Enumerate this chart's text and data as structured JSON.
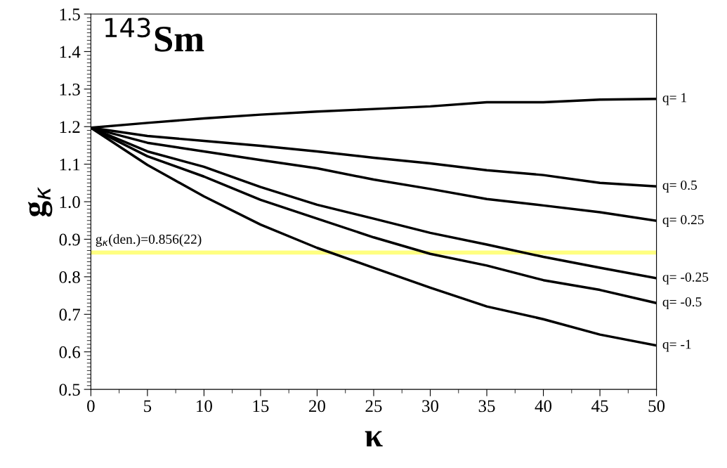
{
  "chart_data": {
    "type": "line",
    "xlabel": "κ",
    "ylabel": "g$_{κ}$",
    "x": [
      0,
      5,
      10,
      15,
      20,
      25,
      30,
      35,
      40,
      45,
      50
    ],
    "series": [
      {
        "name": "q= 1",
        "color": "#000000",
        "values": [
          1.197,
          1.21,
          1.222,
          1.232,
          1.24,
          1.247,
          1.254,
          1.265,
          1.265,
          1.272,
          1.274
        ]
      },
      {
        "name": "q= 0.5",
        "color": "#000000",
        "values": [
          1.197,
          1.175,
          1.162,
          1.149,
          1.134,
          1.117,
          1.102,
          1.084,
          1.071,
          1.05,
          1.041
        ]
      },
      {
        "name": "q= 0.25",
        "color": "#000000",
        "values": [
          1.197,
          1.157,
          1.134,
          1.111,
          1.089,
          1.059,
          1.034,
          1.007,
          0.99,
          0.972,
          0.949
        ]
      },
      {
        "name": "q= -0.25",
        "color": "#000000",
        "values": [
          1.197,
          1.134,
          1.093,
          1.039,
          0.992,
          0.955,
          0.917,
          0.886,
          0.853,
          0.824,
          0.796
        ]
      },
      {
        "name": "q= -0.5",
        "color": "#000000",
        "values": [
          1.197,
          1.121,
          1.067,
          1.005,
          0.955,
          0.905,
          0.861,
          0.83,
          0.791,
          0.765,
          0.73
        ]
      },
      {
        "name": "q= -1",
        "color": "#000000",
        "values": [
          1.197,
          1.098,
          1.014,
          0.939,
          0.877,
          0.824,
          0.771,
          0.721,
          0.687,
          0.646,
          0.617
        ]
      }
    ],
    "bands": [
      {
        "axis": "y",
        "from": 0.859,
        "to": 0.87,
        "label": "g$_{κ}$(den.)=0.856(22)",
        "color": "#ffff80"
      }
    ],
    "annotations": [
      "$^{143}$Sm"
    ],
    "xlim": [
      0,
      50
    ],
    "xticks": [
      0,
      5,
      10,
      15,
      20,
      25,
      30,
      35,
      40,
      45,
      50
    ],
    "ylim": [
      0.5,
      1.5
    ],
    "yticks": [
      {
        "value": 0.5,
        "label": "0.5"
      },
      {
        "value": 0.6,
        "label": "0.6"
      },
      {
        "value": 0.7,
        "label": "0.7"
      },
      {
        "value": 0.8,
        "label": "0.8"
      },
      {
        "value": 0.9,
        "label": "0.9"
      },
      {
        "value": 1.0,
        "label": "1.0"
      },
      {
        "value": 1.1,
        "label": "1.1"
      },
      {
        "value": 1.2,
        "label": "1.2"
      },
      {
        "value": 1.3,
        "label": "1.3"
      },
      {
        "value": 1.4,
        "label": "1.4"
      },
      {
        "value": 1.5,
        "label": "1.5"
      }
    ],
    "grid": false,
    "legend": false,
    "marker": "none",
    "line_style": "solid"
  }
}
